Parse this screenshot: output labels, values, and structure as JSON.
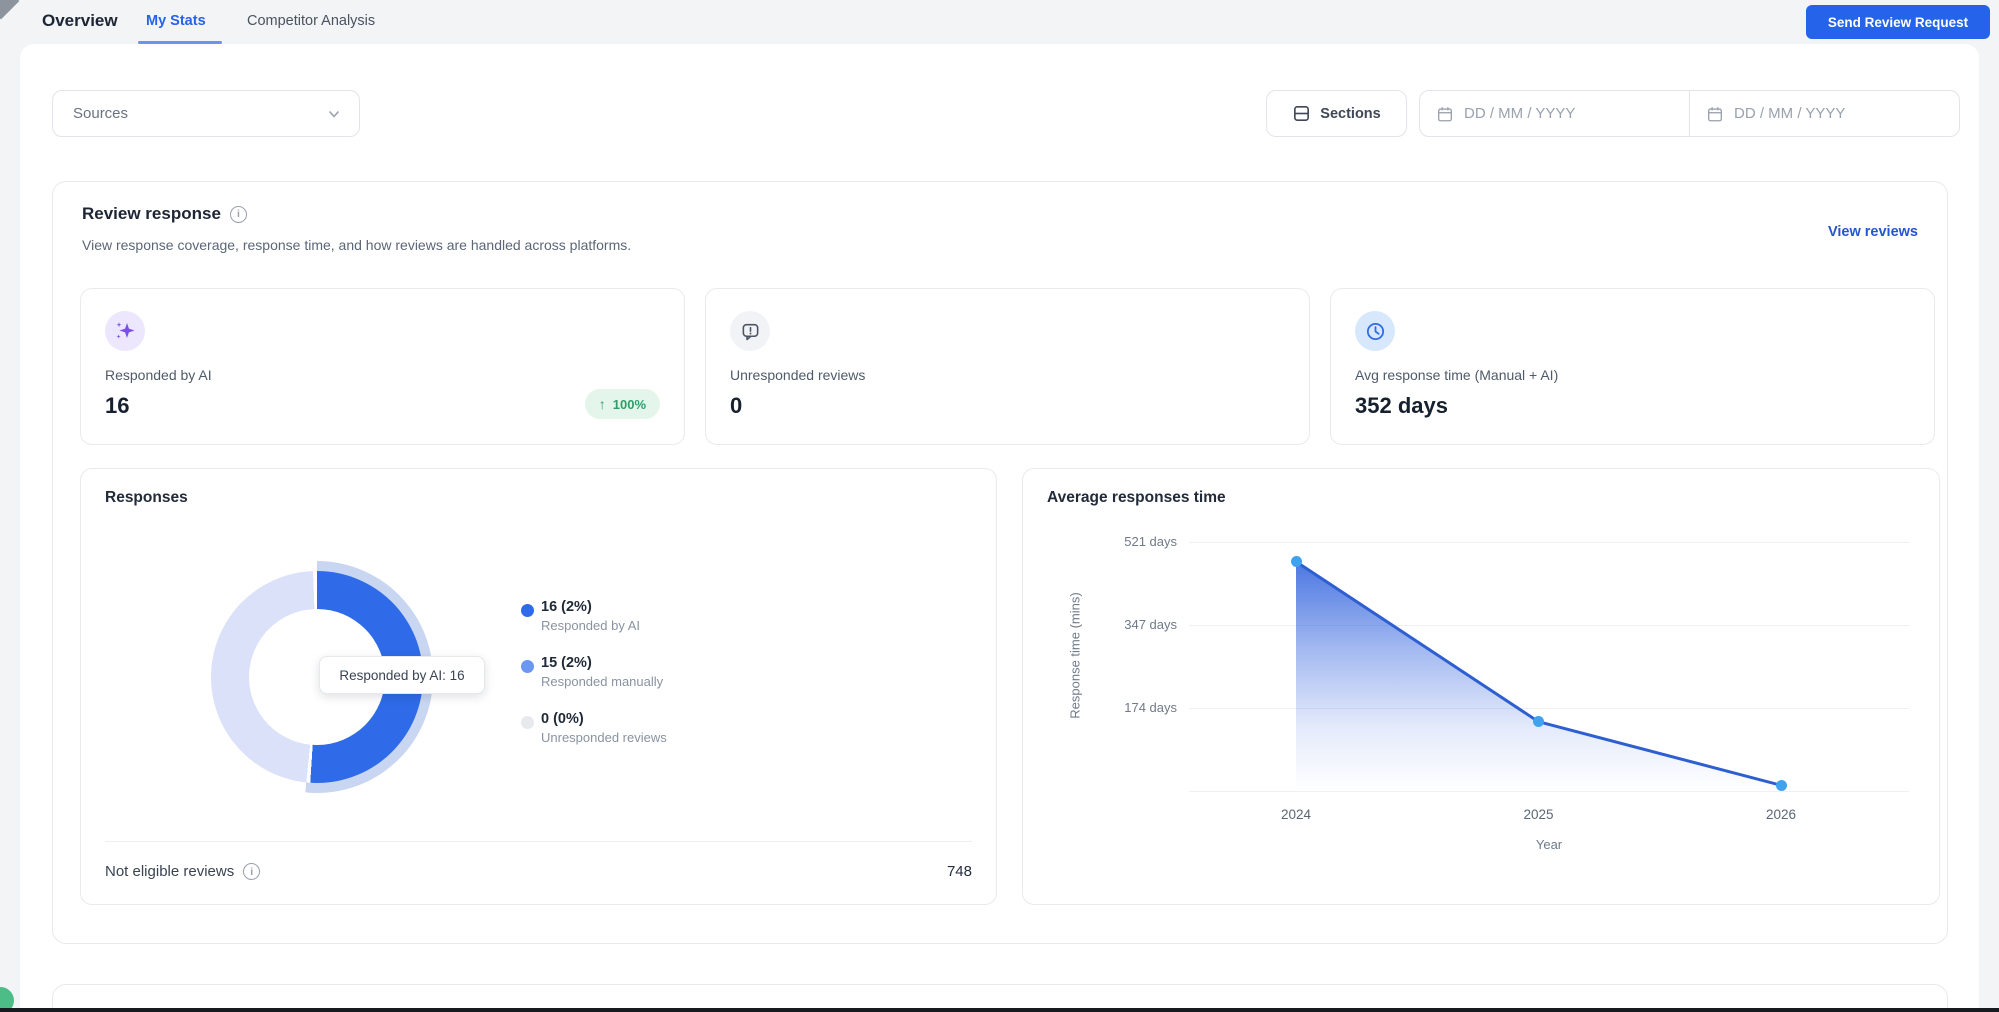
{
  "header": {
    "title": "Overview",
    "tabs": [
      {
        "label": "My Stats"
      },
      {
        "label": "Competitor Analysis"
      }
    ],
    "active_tab": "My Stats",
    "cta_button": "Send Review Request"
  },
  "filters": {
    "sources": "Sources",
    "sections": "Sections",
    "date_start_placeholder": "DD / MM / YYYY",
    "date_end_placeholder": "DD / MM / YYYY"
  },
  "review_response": {
    "title": "Review response",
    "subtitle": "View response coverage, response time, and how reviews are handled across platforms.",
    "view_reviews_link": "View reviews",
    "stats": [
      {
        "label": "Responded by AI",
        "value": "16",
        "delta": "100%",
        "delta_direction": "up"
      },
      {
        "label": "Unresponded reviews",
        "value": "0"
      },
      {
        "label": "Avg response time (Manual + AI)",
        "value": "352 days"
      }
    ]
  },
  "responses_card": {
    "tooltip": "Responded by AI: 16",
    "legend": [
      {
        "value": "16 (2%)",
        "label": "Responded by AI",
        "color": "#2F6BE8"
      },
      {
        "value": "15 (2%)",
        "label": "Responded manually",
        "color": "#6B96F1"
      },
      {
        "value": "0 (0%)",
        "label": "Unresponded reviews",
        "color": "#E7E9ED"
      }
    ],
    "footer": {
      "label": "Not eligible reviews",
      "value": "748"
    }
  },
  "icons": {
    "delta_up_arrow": "↑"
  },
  "colors": {
    "primary": "#2563EB",
    "link": "#2456CF",
    "success_text": "#2E9E68",
    "success_bg": "#E4F6EC",
    "donut_hover_halo": "#C9D6F2",
    "donut_dimmed_segment": "#DAE1F8",
    "line": "#2E5FD0",
    "point": "#3EA2EE"
  },
  "chart_data": [
    {
      "type": "pie",
      "title": "Responses",
      "labels": [
        "Responded by AI",
        "Responded manually",
        "Unresponded reviews"
      ],
      "values": [
        16,
        15,
        0
      ],
      "percent_labels": [
        "16 (2%)",
        "15 (2%)",
        "0 (0%)"
      ],
      "colors": [
        "#2F6BE8",
        "#6B96F1",
        "#E7E9ED"
      ],
      "hole_ratio": 0.66,
      "hovered_segment": "Responded by AI",
      "dimmed_segment_color": "#DAE1F8",
      "halo_color": "#C9D6F2",
      "legend_position": "right",
      "not_eligible_reviews": 748
    },
    {
      "type": "area",
      "title": "Average responses time",
      "x": [
        "2024",
        "2025",
        "2026"
      ],
      "values": [
        480,
        145,
        12
      ],
      "unit": "days",
      "xlabel": "Year",
      "ylabel": "Response time (mins)",
      "yticks": [
        {
          "value": 521,
          "label": "521 days"
        },
        {
          "value": 347,
          "label": "347 days"
        },
        {
          "value": 174,
          "label": "174 days"
        }
      ],
      "ylim": [
        0,
        521
      ],
      "grid": true,
      "line_color": "#2E5FD0",
      "point_color": "#3EA2EE"
    }
  ]
}
